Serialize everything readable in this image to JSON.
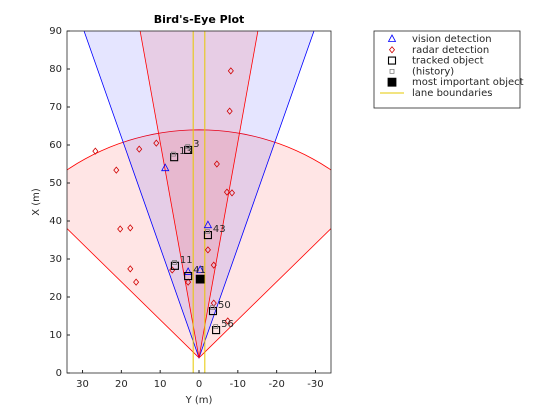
{
  "chart_data": {
    "type": "scatter",
    "title": "Bird's-Eye Plot",
    "x_label": "Y (m)",
    "y_label": "X (m)",
    "xlim": [
      34,
      -34
    ],
    "xticks": [
      30,
      20,
      10,
      0,
      -10,
      -20,
      -30
    ],
    "ylim": [
      0,
      90
    ],
    "yticks": [
      0,
      10,
      20,
      30,
      40,
      50,
      60,
      70,
      80,
      90
    ],
    "coverage": [
      {
        "color": "#ff0000",
        "origin": [
          0,
          4
        ],
        "range": 60,
        "fov": 90
      },
      {
        "color": "#0000ff",
        "origin": [
          0,
          4
        ],
        "range": 150,
        "fov": 38
      },
      {
        "color": "#ff0000",
        "origin": [
          0,
          4
        ],
        "range": 174,
        "fov": 20
      }
    ],
    "series": [
      {
        "name": "vision detection",
        "color": "#0000ff",
        "marker": "triangle",
        "x": [
          8.7,
          -2.3,
          -0.3,
          2.8
        ],
        "values": [
          53.9,
          38.9,
          27.1,
          26.6
        ]
      },
      {
        "name": "radar detection",
        "color": "#d00000",
        "marker": "diamond",
        "x": [
          26.7,
          21.3,
          15.4,
          11,
          -8.2,
          -7.9,
          -4.6,
          -7.2,
          -8.5,
          20.3,
          17.7,
          17.7,
          16.2,
          -2.3,
          -3.8,
          -3.8,
          -7.4,
          6.9,
          2.8
        ],
        "values": [
          58.4,
          53.4,
          58.9,
          60.5,
          79.5,
          68.9,
          55,
          47.6,
          47.4,
          37.9,
          38.2,
          27.4,
          23.9,
          32.4,
          28.4,
          18.4,
          13.7,
          27.1,
          23.9
        ]
      },
      {
        "name": "tracked object",
        "color": "#000000",
        "marker": "square",
        "x": [
          6.4,
          2.8,
          -2.3,
          6.2,
          2.8,
          -3.6,
          -4.4
        ],
        "values": [
          56.8,
          58.7,
          36.3,
          28.2,
          25.5,
          16.3,
          11.3
        ],
        "labels": [
          "13",
          "3",
          "43",
          "11",
          "41",
          "50",
          "56"
        ]
      },
      {
        "name": "(history)",
        "color": "#808080",
        "marker": "small-square",
        "x": [
          6.6,
          2.9,
          -2.2,
          6.3,
          -3.5,
          -4.3
        ],
        "values": [
          57.6,
          59.6,
          37.2,
          29.1,
          17.2,
          12.2
        ]
      },
      {
        "name": "most important object",
        "color": "#000000",
        "marker": "filled-square",
        "x": [
          -0.3
        ],
        "values": [
          24.7
        ]
      }
    ],
    "lanes": {
      "name": "lane boundaries",
      "color": "#e6c800",
      "positions": [
        1.5,
        -1.5
      ]
    }
  }
}
